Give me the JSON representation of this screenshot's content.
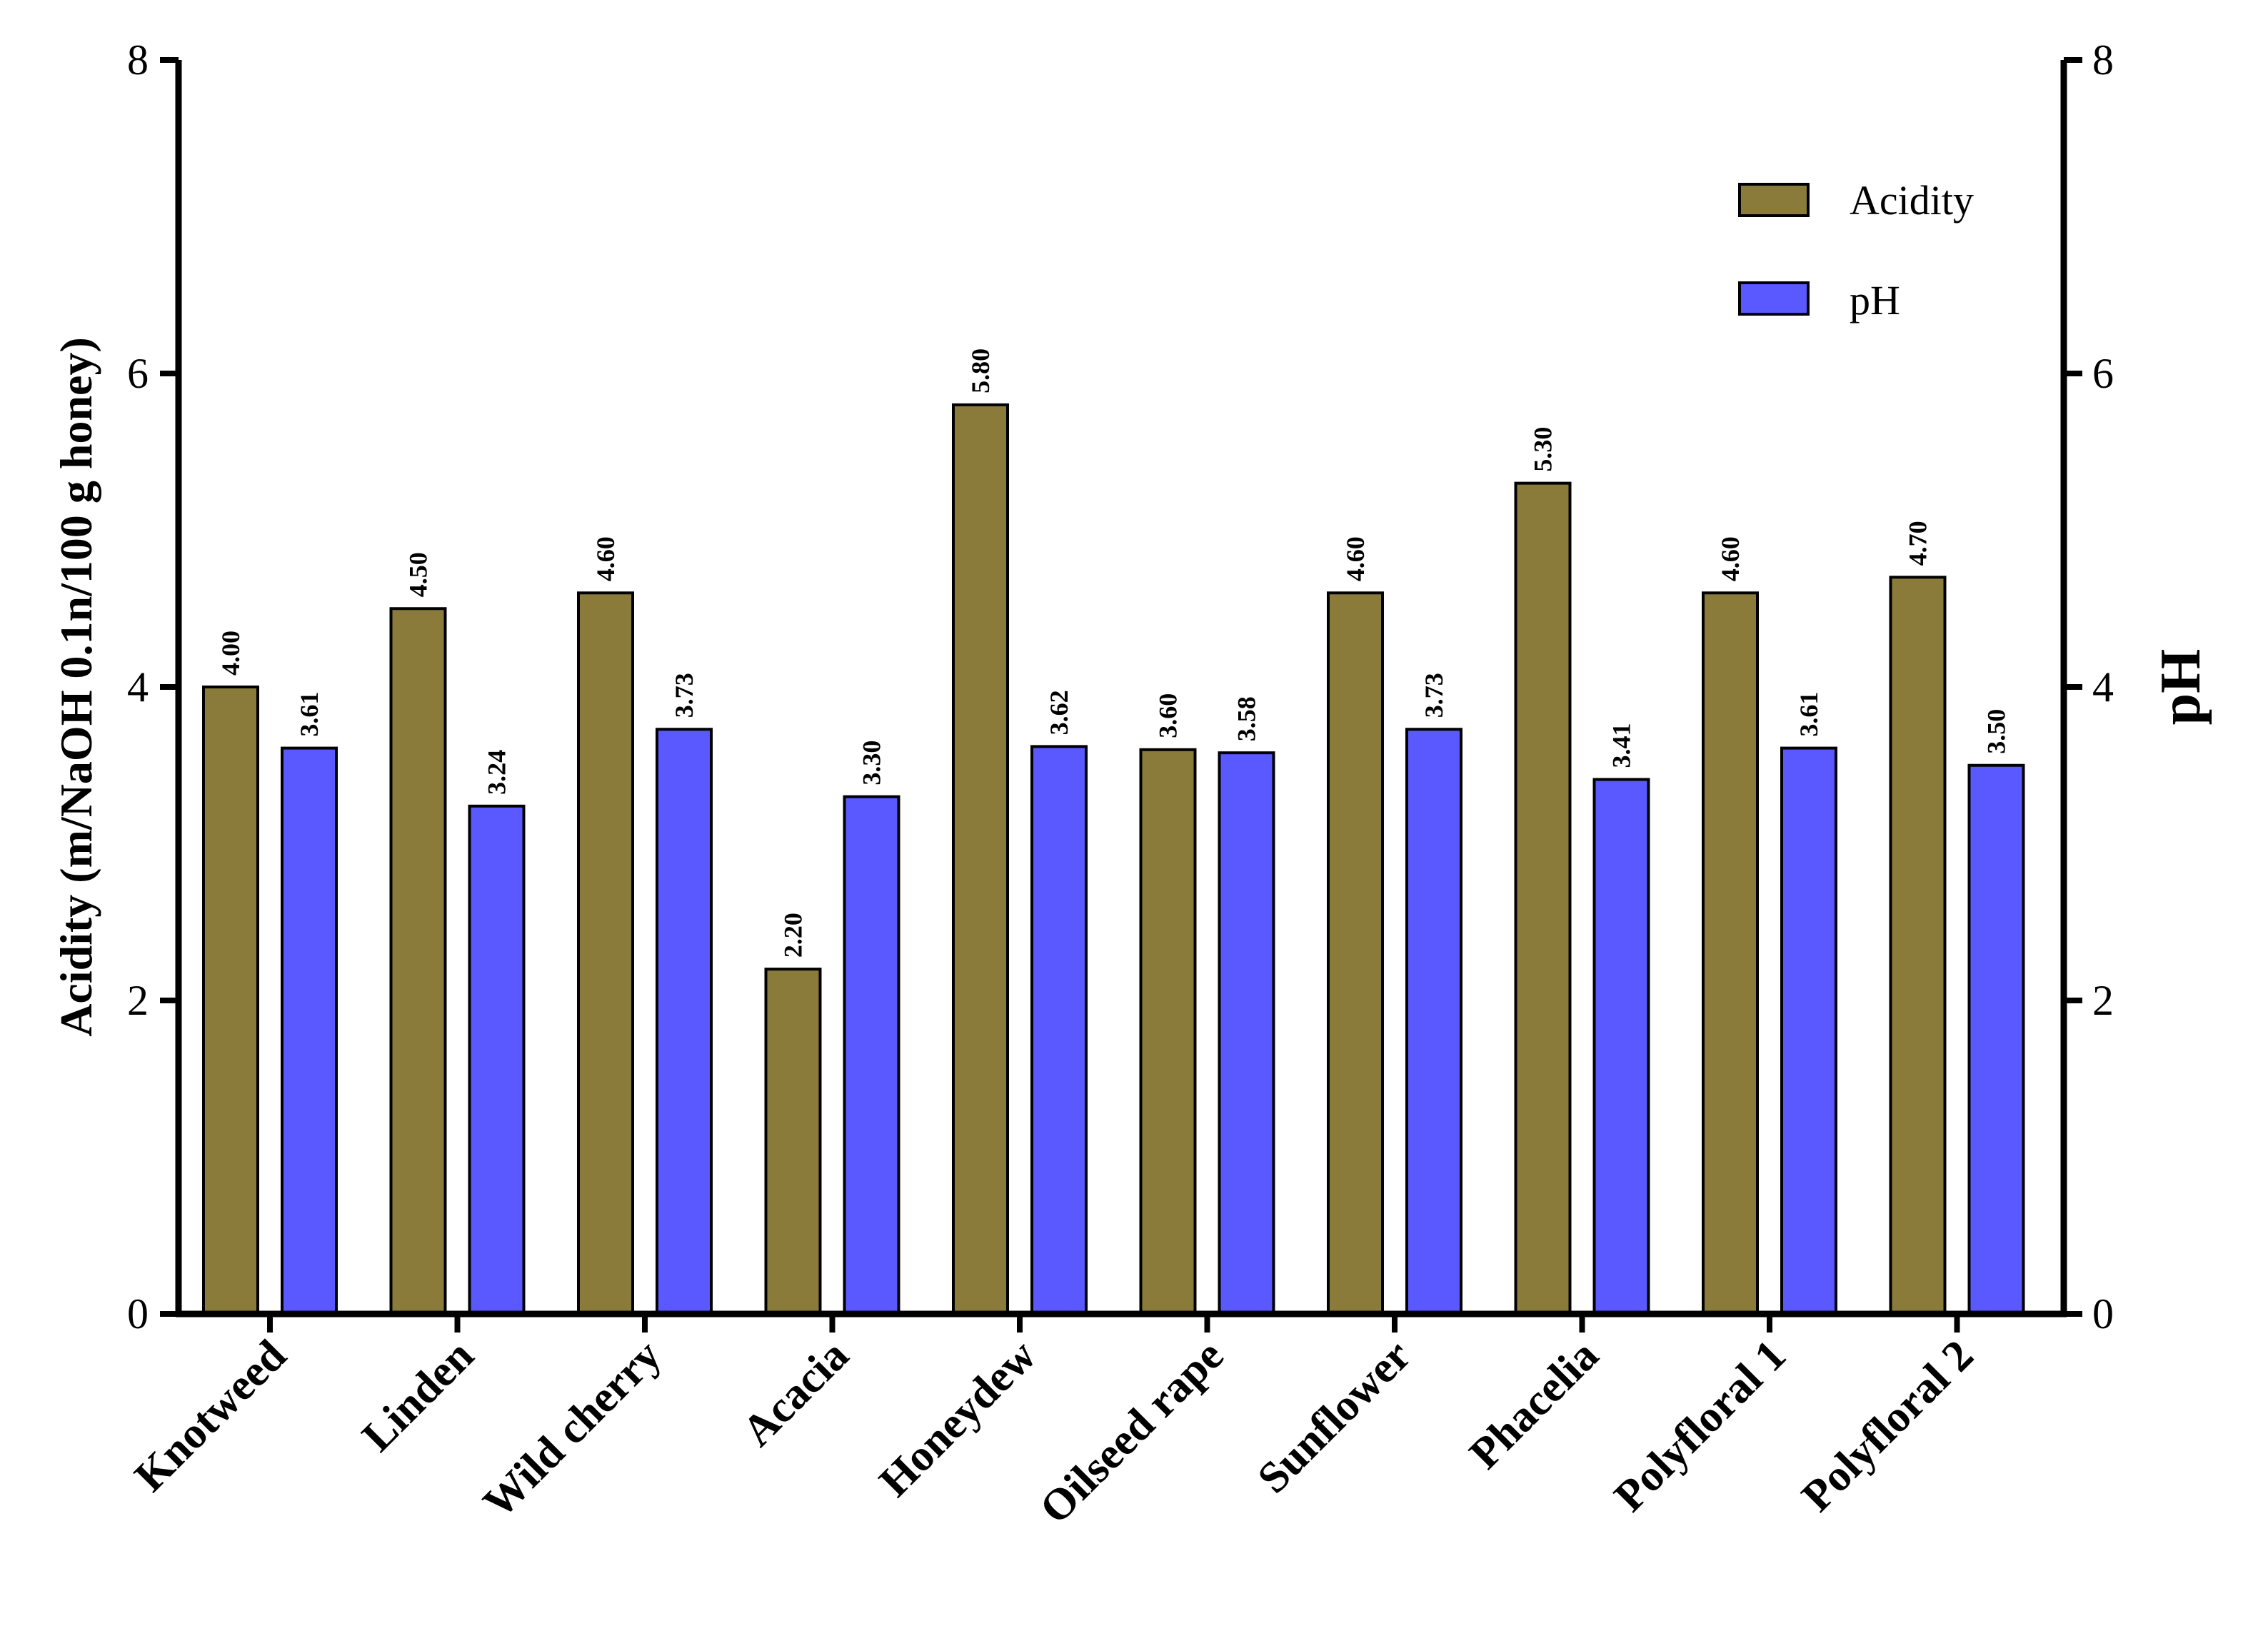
{
  "chart_data": {
    "type": "bar",
    "title": "",
    "categories": [
      "Knotweed",
      "Linden",
      "Wild cherry",
      "Acacia",
      "Honeydew",
      "Oilseed rape",
      "Sunflower",
      "Phacelia",
      "Polyfloral 1",
      "Polyfloral 2"
    ],
    "series": [
      {
        "name": "Acidity",
        "color": "#8B7B3A",
        "axis": "left",
        "values": [
          4.0,
          4.5,
          4.6,
          2.2,
          5.8,
          3.6,
          4.6,
          5.3,
          4.6,
          4.7
        ],
        "labels": [
          "4.00",
          "4.50",
          "4.60",
          "2.20",
          "5.80",
          "3.60",
          "4.60",
          "5.30",
          "4.60",
          "4.70"
        ]
      },
      {
        "name": "pH",
        "color": "#5959FF",
        "axis": "right",
        "values": [
          3.61,
          3.24,
          3.73,
          3.3,
          3.62,
          3.58,
          3.73,
          3.41,
          3.61,
          3.5
        ],
        "labels": [
          "3.61",
          "3.24",
          "3.73",
          "3.30",
          "3.62",
          "3.58",
          "3.73",
          "3.41",
          "3.61",
          "3.50"
        ]
      }
    ],
    "ylabel": "Acidity (m/NaOH 0.1n/100 g honey)",
    "y2label": "pH",
    "xlabel": "",
    "ylim": [
      0,
      8
    ],
    "y2lim": [
      0,
      8
    ],
    "yticks": [
      "0",
      "2",
      "4",
      "6",
      "8"
    ],
    "y2ticks": [
      "0",
      "2",
      "4",
      "6",
      "8"
    ],
    "grid": false,
    "legend_position": "top-right"
  }
}
